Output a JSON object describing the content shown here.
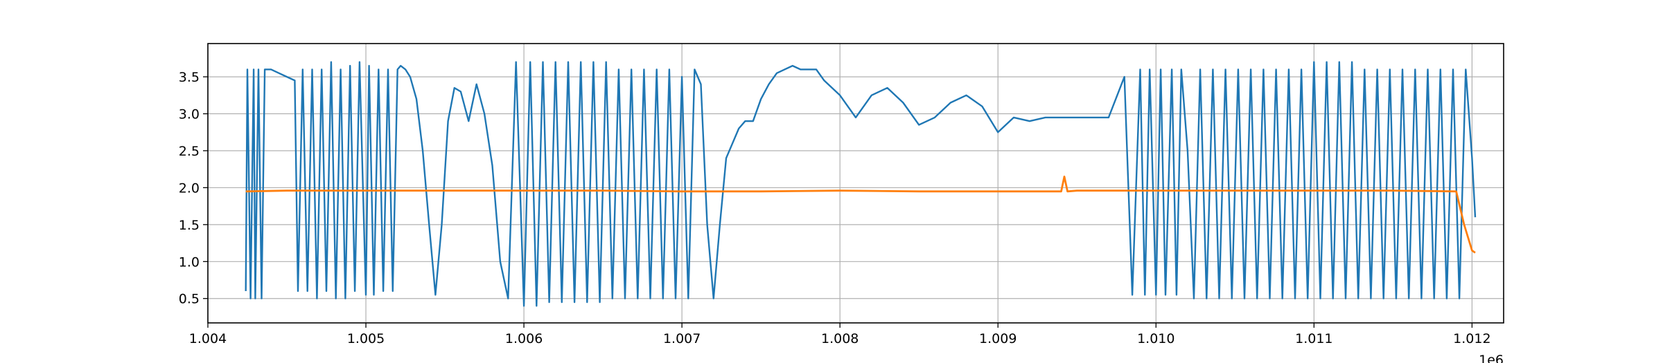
{
  "figure": {
    "background": "#ffffff"
  },
  "chart_data": {
    "type": "line",
    "title": "",
    "xlabel": "",
    "ylabel": "",
    "x_offset_label": "1e6",
    "xlim": [
      1.004,
      1.0122
    ],
    "ylim": [
      0.17,
      3.95
    ],
    "grid": true,
    "legend": "none",
    "x_ticks": [
      1.004,
      1.005,
      1.006,
      1.007,
      1.008,
      1.009,
      1.01,
      1.011,
      1.012
    ],
    "x_tick_labels": [
      "1.004",
      "1.005",
      "1.006",
      "1.007",
      "1.008",
      "1.009",
      "1.010",
      "1.011",
      "1.012"
    ],
    "y_ticks": [
      0.5,
      1.0,
      1.5,
      2.0,
      2.5,
      3.0,
      3.5
    ],
    "y_tick_labels": [
      "0.5",
      "1.0",
      "1.5",
      "2.0",
      "2.5",
      "3.0",
      "3.5"
    ],
    "series": [
      {
        "color": "#1f77b4",
        "x": [
          1.00424,
          1.00425,
          1.00427,
          1.00429,
          1.0043,
          1.00432,
          1.00434,
          1.00436,
          1.0044,
          1.00445,
          1.0045,
          1.00455,
          1.00457,
          1.0046,
          1.00463,
          1.00466,
          1.00469,
          1.00472,
          1.00475,
          1.00478,
          1.00481,
          1.00484,
          1.00487,
          1.0049,
          1.00493,
          1.00496,
          1.005,
          1.00502,
          1.00505,
          1.00508,
          1.00511,
          1.00514,
          1.00517,
          1.0052,
          1.00522,
          1.00525,
          1.00528,
          1.00532,
          1.00536,
          1.0054,
          1.00544,
          1.00548,
          1.00552,
          1.00556,
          1.0056,
          1.00565,
          1.0057,
          1.00575,
          1.0058,
          1.00585,
          1.0059,
          1.00595,
          1.006,
          1.00604,
          1.00608,
          1.00612,
          1.00616,
          1.0062,
          1.00624,
          1.00628,
          1.00632,
          1.00636,
          1.0064,
          1.00644,
          1.00648,
          1.00652,
          1.00656,
          1.0066,
          1.00664,
          1.00668,
          1.00672,
          1.00676,
          1.0068,
          1.00684,
          1.00688,
          1.00692,
          1.00696,
          1.007,
          1.00704,
          1.00708,
          1.00712,
          1.00716,
          1.0072,
          1.00724,
          1.00728,
          1.00732,
          1.00736,
          1.0074,
          1.00745,
          1.0075,
          1.00755,
          1.0076,
          1.00765,
          1.0077,
          1.00775,
          1.0078,
          1.00785,
          1.0079,
          1.008,
          1.0081,
          1.0082,
          1.0083,
          1.0084,
          1.0085,
          1.0086,
          1.0087,
          1.0088,
          1.0089,
          1.009,
          1.0091,
          1.0092,
          1.0093,
          1.0094,
          1.0095,
          1.0096,
          1.0097,
          1.0098,
          1.00985,
          1.0099,
          1.00993,
          1.00996,
          1.01,
          1.01003,
          1.01006,
          1.0101,
          1.01013,
          1.01016,
          1.0102,
          1.01024,
          1.01028,
          1.01032,
          1.01036,
          1.0104,
          1.01044,
          1.01048,
          1.01052,
          1.01056,
          1.0106,
          1.01064,
          1.01068,
          1.01072,
          1.01076,
          1.0108,
          1.01084,
          1.01088,
          1.01092,
          1.01096,
          1.011,
          1.01104,
          1.01108,
          1.01112,
          1.01116,
          1.0112,
          1.01124,
          1.01128,
          1.01132,
          1.01136,
          1.0114,
          1.01144,
          1.01148,
          1.01152,
          1.01156,
          1.0116,
          1.01164,
          1.01168,
          1.01172,
          1.01176,
          1.0118,
          1.01184,
          1.01188,
          1.01192,
          1.01196,
          1.012,
          1.01202
        ],
        "y": [
          0.6,
          3.6,
          0.5,
          3.6,
          0.5,
          3.6,
          0.5,
          3.6,
          3.6,
          3.55,
          3.5,
          3.45,
          0.6,
          3.6,
          0.6,
          3.6,
          0.5,
          3.6,
          0.6,
          3.7,
          0.5,
          3.6,
          0.5,
          3.65,
          0.6,
          3.7,
          0.55,
          3.65,
          0.55,
          3.6,
          0.6,
          3.6,
          0.6,
          3.6,
          3.65,
          3.6,
          3.5,
          3.2,
          2.5,
          1.5,
          0.55,
          1.5,
          2.9,
          3.35,
          3.3,
          2.9,
          3.4,
          3.0,
          2.3,
          1.0,
          0.5,
          3.7,
          0.4,
          3.7,
          0.4,
          3.7,
          0.45,
          3.7,
          0.45,
          3.7,
          0.45,
          3.7,
          0.45,
          3.7,
          0.45,
          3.7,
          0.5,
          3.6,
          0.5,
          3.6,
          0.5,
          3.6,
          0.5,
          3.6,
          0.5,
          3.6,
          0.5,
          3.5,
          0.5,
          3.6,
          3.4,
          1.5,
          0.5,
          1.5,
          2.4,
          2.6,
          2.8,
          2.9,
          2.9,
          3.2,
          3.4,
          3.55,
          3.6,
          3.65,
          3.6,
          3.6,
          3.6,
          3.45,
          3.25,
          2.95,
          3.25,
          3.35,
          3.15,
          2.85,
          2.95,
          3.15,
          3.25,
          3.1,
          2.75,
          2.95,
          2.9,
          2.95,
          2.95,
          2.95,
          2.95,
          2.95,
          3.5,
          0.55,
          3.6,
          0.55,
          3.6,
          0.55,
          3.6,
          0.55,
          3.6,
          0.55,
          3.6,
          2.5,
          0.5,
          3.6,
          0.5,
          3.6,
          0.5,
          3.6,
          0.5,
          3.6,
          0.5,
          3.6,
          0.5,
          3.6,
          0.5,
          3.6,
          0.5,
          3.6,
          0.5,
          3.6,
          0.5,
          3.7,
          0.5,
          3.7,
          0.5,
          3.7,
          0.5,
          3.7,
          0.5,
          3.6,
          0.5,
          3.6,
          0.5,
          3.6,
          0.5,
          3.6,
          0.5,
          3.6,
          0.5,
          3.6,
          0.5,
          3.6,
          0.5,
          3.6,
          0.5,
          3.6,
          2.4,
          1.6
        ]
      },
      {
        "color": "#ff7f0e",
        "x": [
          1.00424,
          1.0045,
          1.005,
          1.0055,
          1.006,
          1.0065,
          1.007,
          1.0075,
          1.008,
          1.0085,
          1.009,
          1.0094,
          1.00942,
          1.00944,
          1.0095,
          1.01,
          1.0105,
          1.011,
          1.0115,
          1.0119,
          1.01195,
          1.012,
          1.01202
        ],
        "y": [
          1.95,
          1.96,
          1.96,
          1.96,
          1.96,
          1.96,
          1.95,
          1.95,
          1.96,
          1.95,
          1.95,
          1.95,
          2.15,
          1.95,
          1.96,
          1.96,
          1.96,
          1.96,
          1.96,
          1.95,
          1.5,
          1.15,
          1.12
        ]
      }
    ]
  }
}
